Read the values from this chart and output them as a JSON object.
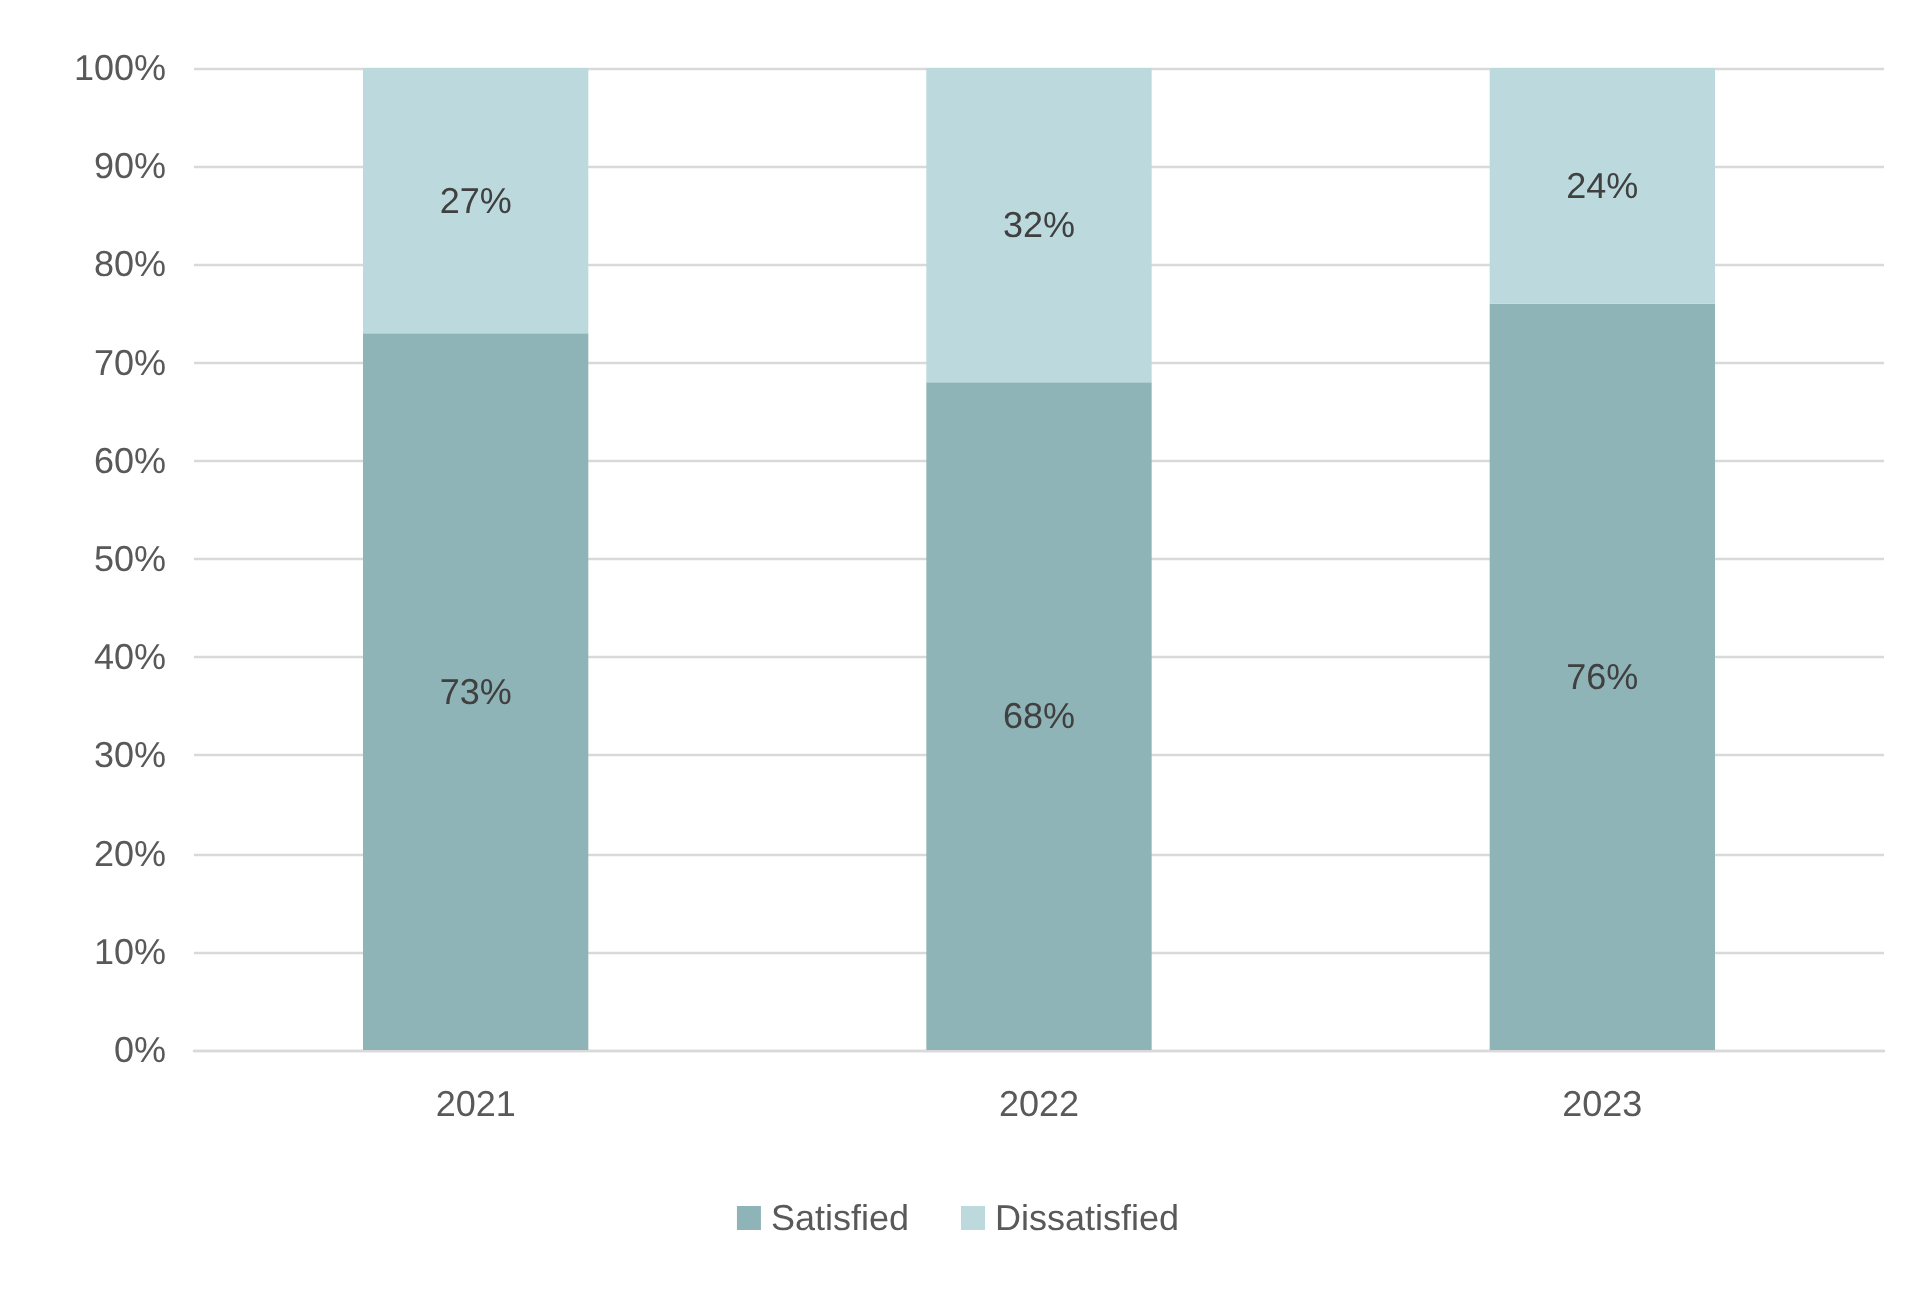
{
  "chart_data": {
    "type": "bar",
    "stacked": true,
    "categories": [
      "2021",
      "2022",
      "2023"
    ],
    "series": [
      {
        "name": "Satisfied",
        "color": "#8fb4b8",
        "values": [
          73,
          68,
          76
        ],
        "value_labels": [
          "73%",
          "68%",
          "76%"
        ]
      },
      {
        "name": "Dissatisfied",
        "color": "#bcdade",
        "values": [
          27,
          32,
          24
        ],
        "value_labels": [
          "27%",
          "32%",
          "24%"
        ]
      }
    ],
    "ylim": [
      0,
      100
    ],
    "yticks": [
      {
        "value": 0,
        "label": "0%"
      },
      {
        "value": 10,
        "label": "10%"
      },
      {
        "value": 20,
        "label": "20%"
      },
      {
        "value": 30,
        "label": "30%"
      },
      {
        "value": 40,
        "label": "40%"
      },
      {
        "value": 50,
        "label": "50%"
      },
      {
        "value": 60,
        "label": "60%"
      },
      {
        "value": 70,
        "label": "70%"
      },
      {
        "value": 80,
        "label": "80%"
      },
      {
        "value": 90,
        "label": "90%"
      },
      {
        "value": 100,
        "label": "100%"
      }
    ],
    "grid": "y",
    "legend": "bottom"
  }
}
